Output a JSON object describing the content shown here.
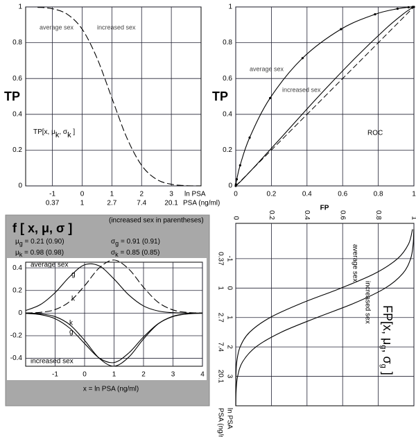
{
  "chart_data": [
    {
      "type": "line",
      "ylabel": "TP",
      "title_parts": [
        "TP[x, μ",
        "k",
        ", σ",
        "k",
        " ]"
      ],
      "notes": [
        "average sex",
        "increased sex"
      ],
      "xlabel": [
        "ln PSA",
        "PSA (ng/ml)"
      ],
      "x": [
        -1.5,
        -1,
        -0.5,
        0,
        0.5,
        1,
        1.5,
        2,
        2.5,
        3,
        3.5,
        4
      ],
      "series": [
        {
          "color": "#000000",
          "dash": true,
          "values": [
            0.998,
            0.99,
            0.959,
            0.876,
            0.714,
            0.491,
            0.27,
            0.115,
            0.037,
            0.009,
            0.0015,
            0.0002
          ]
        }
      ],
      "xlim": [
        -1.9,
        4
      ],
      "xticks": [
        -1,
        0,
        1,
        2,
        3
      ],
      "xtick_psa": [
        "0.37",
        "1",
        "2.7",
        "7.4",
        "20.1"
      ],
      "ylim": [
        0,
        1
      ],
      "yticks": [
        0,
        0.2,
        0.4,
        0.6,
        0.8,
        1
      ],
      "grid": true
    },
    {
      "type": "line",
      "title": "ROC",
      "xlabel": "FP",
      "ylabel": "TP",
      "diagonal": true,
      "series": [
        {
          "name": "average sex",
          "color": "#000000",
          "markers": true,
          "x": [
            1,
            0.992,
            0.97,
            0.908,
            0.782,
            0.591,
            0.375,
            0.193,
            0.078,
            0.0246,
            0.0059,
            0.0011,
            0
          ],
          "values": [
            1,
            0.9998,
            0.998,
            0.99,
            0.959,
            0.876,
            0.714,
            0.491,
            0.27,
            0.115,
            0.037,
            0.009,
            0
          ]
        },
        {
          "name": "increased sex",
          "color": "#000000",
          "x": [
            1,
            0.9993,
            0.9958,
            0.9816,
            0.938,
            0.839,
            0.67,
            0.456,
            0.255,
            0.113,
            0.039,
            0.0105,
            0
          ],
          "values": [
            1,
            0.9998,
            0.998,
            0.99,
            0.959,
            0.876,
            0.714,
            0.491,
            0.27,
            0.115,
            0.037,
            0.009,
            0
          ]
        }
      ],
      "xlim": [
        0,
        1
      ],
      "xticks": [
        0,
        0.2,
        0.4,
        0.6,
        0.8,
        1
      ],
      "ylim": [
        0,
        1
      ],
      "yticks": [
        0,
        0.2,
        0.4,
        0.6,
        0.8,
        1
      ],
      "grid": true
    },
    {
      "type": "line",
      "title": "f [ x, μ, σ ]",
      "subtitle": "(increased sex in parentheses)",
      "params": [
        [
          "μ",
          "g",
          " = 0.21 (0.90)"
        ],
        [
          "σ",
          "g",
          " = 0.91 (0.91)"
        ],
        [
          "μ",
          "k",
          " = 0.98 (0.98)"
        ],
        [
          "σ",
          "k",
          " = 0.85 (0.85)"
        ]
      ],
      "xlabel": "x = ln PSA (ng/ml)",
      "notes": [
        "average sex",
        "increased sex"
      ],
      "x": [
        -2,
        -1.5,
        -1,
        -0.5,
        0,
        0.5,
        1,
        1.5,
        2,
        2.5,
        3,
        3.5,
        4
      ],
      "series": [
        {
          "name": "g",
          "color": "#000000",
          "values": [
            0.023,
            0.075,
            0.1811,
            0.3234,
            0.4268,
            0.4167,
            0.3008,
            0.1605,
            0.0633,
            0.0185,
            0.004,
            0.0006,
            0.0001
          ]
        },
        {
          "name": "k",
          "color": "#000000",
          "dash": true,
          "values": [
            0.001,
            0.0067,
            0.0311,
            0.1031,
            0.2414,
            0.4001,
            0.4692,
            0.3892,
            0.2285,
            0.0949,
            0.0279,
            0.0058,
            0.0009
          ]
        },
        {
          "name": "k",
          "color": "#000000",
          "values": [
            -0.001,
            -0.0067,
            -0.0311,
            -0.1031,
            -0.2414,
            -0.4001,
            -0.4692,
            -0.3892,
            -0.2285,
            -0.0949,
            -0.0279,
            -0.0058,
            -0.0009
          ]
        },
        {
          "name": "g",
          "color": "#000000",
          "values": [
            -0.0027,
            -0.0135,
            -0.0496,
            -0.1342,
            -0.2688,
            -0.398,
            -0.437,
            -0.3527,
            -0.2111,
            -0.0934,
            -0.0306,
            -0.0074,
            -0.0013
          ]
        }
      ],
      "xlim": [
        -2,
        4
      ],
      "xticks": [
        -1,
        0,
        1,
        2,
        3,
        4
      ],
      "ylim": [
        -0.47,
        0.45
      ],
      "yticks": [
        -0.4,
        -0.2,
        0,
        0.2,
        0.4
      ],
      "grid": true
    },
    {
      "type": "line",
      "orientation": "vertical",
      "title_parts": [
        "FP[x, μ",
        "g",
        ", σ",
        "g",
        " ]"
      ],
      "xlabel": [
        "ln PSA",
        "PSA (ng/ml)"
      ],
      "x": [
        -2,
        -1.5,
        -1,
        -0.5,
        0,
        0.5,
        1,
        1.5,
        2,
        2.5,
        3,
        3.5,
        4
      ],
      "series": [
        {
          "name": "average sex",
          "color": "#000000",
          "values": [
            0.992,
            0.97,
            0.908,
            0.782,
            0.591,
            0.375,
            0.193,
            0.078,
            0.0246,
            0.0059,
            0.0011,
            0.00015,
            2e-05
          ]
        },
        {
          "name": "increased sex",
          "color": "#000000",
          "values": [
            0.9993,
            0.9958,
            0.9816,
            0.938,
            0.839,
            0.67,
            0.456,
            0.255,
            0.113,
            0.039,
            0.0105,
            0.0021,
            0.0003
          ]
        }
      ],
      "xlim": [
        -2.2,
        4
      ],
      "xticks": [
        -1,
        0,
        1,
        2,
        3
      ],
      "xtick_psa": [
        "0.37",
        "1",
        "2.7",
        "7.4",
        "20.1"
      ],
      "ylim": [
        0,
        1
      ],
      "yticks": [
        0,
        0.2,
        0.4,
        0.6,
        0.8,
        1
      ],
      "grid": true
    }
  ]
}
